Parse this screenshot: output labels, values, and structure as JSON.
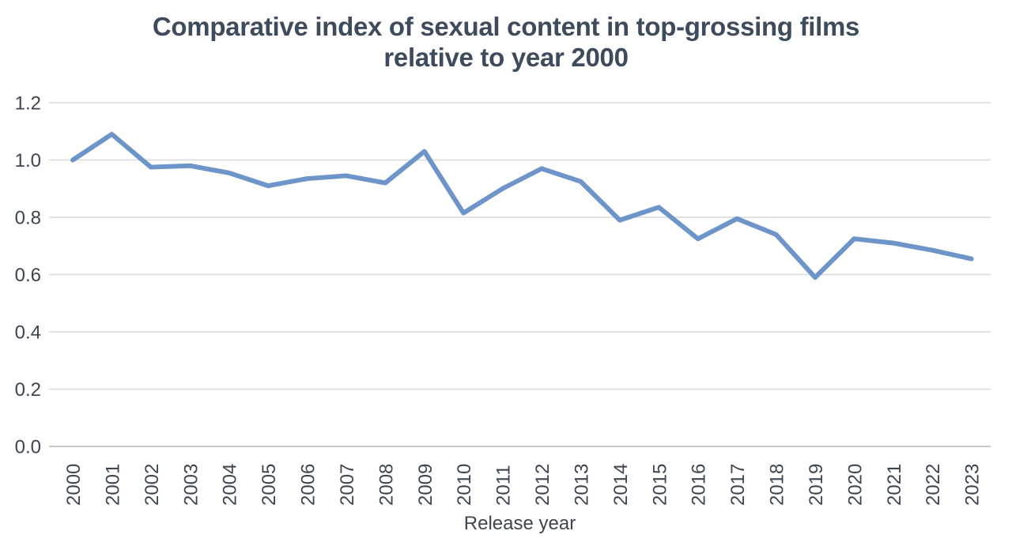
{
  "page": {
    "background": "#ffffff"
  },
  "chart_data": {
    "type": "line",
    "title": "Comparative index of sexual content in top-grossing films relative to year 2000",
    "title_line1": "Comparative index of sexual content in top-grossing films",
    "title_line2": "relative to year 2000",
    "xlabel": "Release year",
    "ylabel": "",
    "categories": [
      "2000",
      "2001",
      "2002",
      "2003",
      "2004",
      "2005",
      "2006",
      "2007",
      "2008",
      "2009",
      "2010",
      "2011",
      "2012",
      "2013",
      "2014",
      "2015",
      "2016",
      "2017",
      "2018",
      "2019",
      "2020",
      "2021",
      "2022",
      "2023"
    ],
    "values": [
      1.0,
      1.09,
      0.975,
      0.98,
      0.955,
      0.91,
      0.935,
      0.945,
      0.92,
      1.03,
      0.815,
      0.9,
      0.97,
      0.925,
      0.79,
      0.835,
      0.725,
      0.795,
      0.74,
      0.59,
      0.725,
      0.71,
      0.685,
      0.655
    ],
    "ylim": [
      0,
      1.2
    ],
    "y_tick_labels": [
      "0.0",
      "0.2",
      "0.4",
      "0.6",
      "0.8",
      "1.0",
      "1.2"
    ],
    "grid": true,
    "legend": "none",
    "colors": {
      "line": "#6d95c9",
      "gridline": "#d9d9d9",
      "axis_line": "#c7c7c7",
      "title_text": "#3e4b5c",
      "tick_text": "#3d4650"
    }
  }
}
